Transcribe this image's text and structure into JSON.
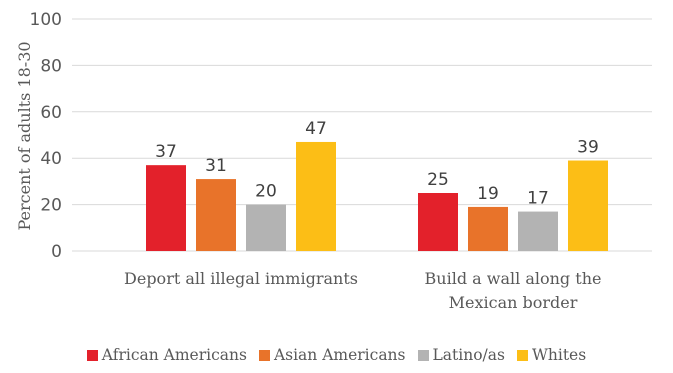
{
  "chart_data": {
    "type": "bar",
    "ylabel": "Percent of adults 18-30",
    "ylim": [
      0,
      100
    ],
    "yticks": [
      0,
      20,
      40,
      60,
      80,
      100
    ],
    "grid": true,
    "categories": [
      [
        "Deport all illegal immigrants"
      ],
      [
        "Build a wall along the",
        "Mexican border"
      ]
    ],
    "series": [
      {
        "name": "African Americans",
        "color": "#E3212B",
        "values": [
          37,
          25
        ]
      },
      {
        "name": "Asian Americans",
        "color": "#E8732A",
        "values": [
          31,
          19
        ]
      },
      {
        "name": "Latino/as",
        "color": "#B3B3B3",
        "values": [
          20,
          17
        ]
      },
      {
        "name": "Whites",
        "color": "#FCBE16",
        "values": [
          47,
          39
        ]
      }
    ],
    "legend_position": "bottom"
  }
}
